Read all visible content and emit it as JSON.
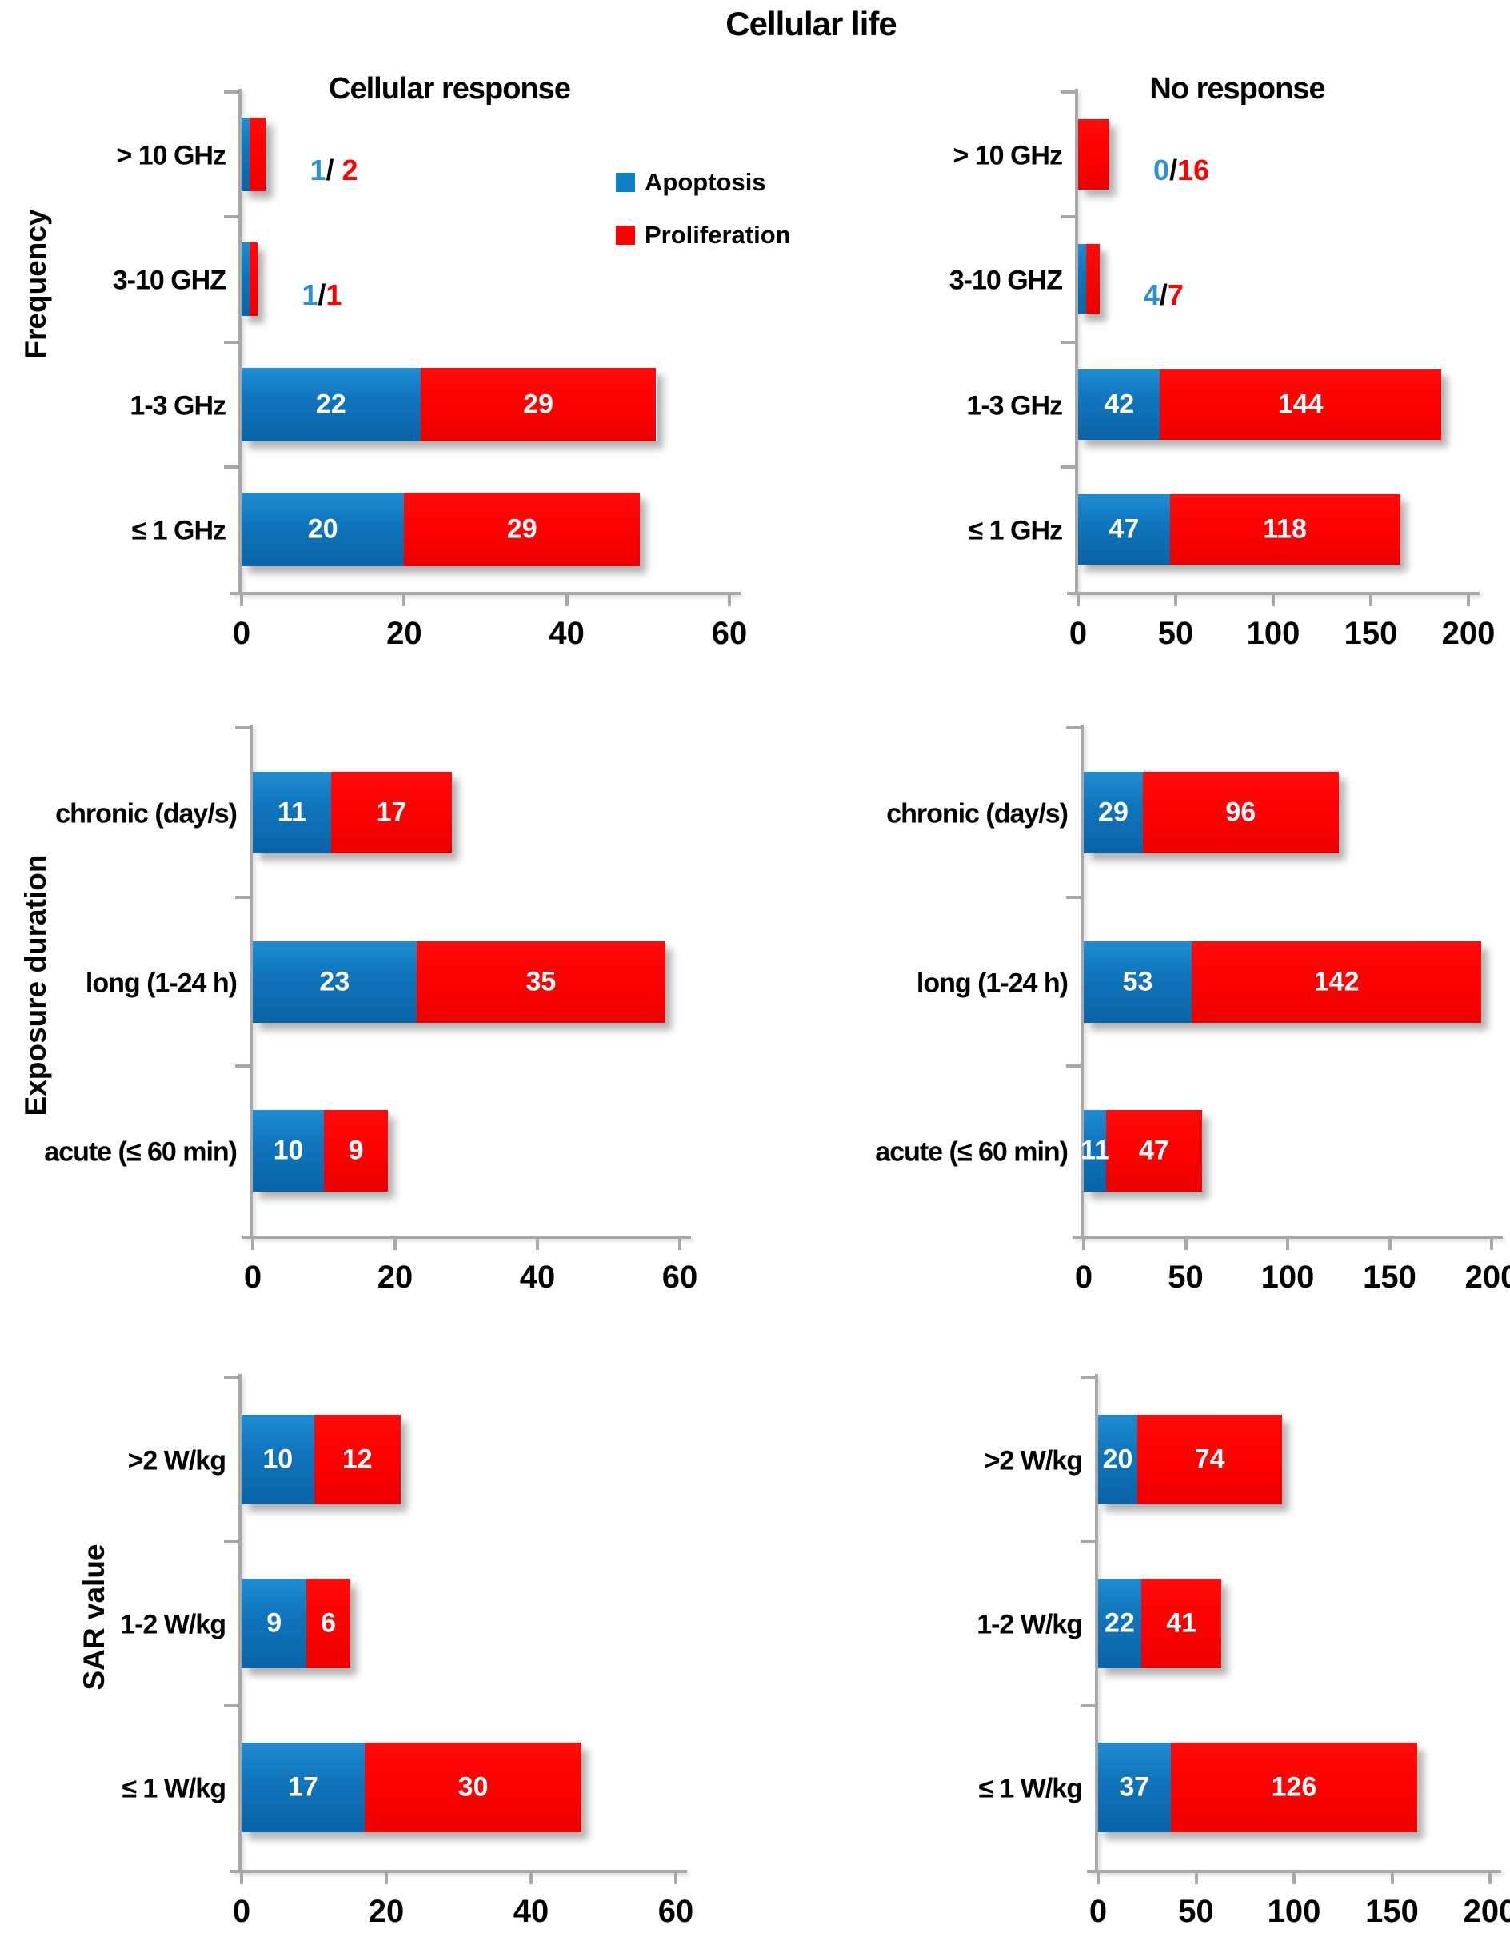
{
  "title": "Cellular life",
  "colors": {
    "apoptosis": "#0e7ec6",
    "apoptosis_dark": "#0a63a6",
    "proliferation": "#ff0000",
    "axis": "#a8a8a8",
    "label_blue": "#2e8fd6",
    "label_red": "#ff0000",
    "bar_value_text": "#ffffff"
  },
  "legend": {
    "items": [
      {
        "label": "Apoptosis",
        "series": "apoptosis"
      },
      {
        "label": "Proliferation",
        "series": "proliferation"
      }
    ]
  },
  "chart_data": [
    {
      "type": "bar",
      "orientation": "horizontal",
      "stacked": true,
      "group": "Frequency",
      "panel_title": "Cellular response",
      "categories": [
        "> 10 GHz",
        "3-10 GHZ",
        "1-3 GHz",
        "≤ 1 GHz"
      ],
      "series": [
        {
          "name": "Apoptosis",
          "values": [
            1,
            1,
            22,
            20
          ]
        },
        {
          "name": "Proliferation",
          "values": [
            2,
            1,
            29,
            29
          ]
        }
      ],
      "xlim": [
        0,
        60
      ],
      "x_ticks": [
        0,
        20,
        40,
        60
      ],
      "grid": false,
      "side_labels": [
        {
          "row": 0,
          "blue": "1",
          "sep": "/ ",
          "red": "2"
        },
        {
          "row": 1,
          "blue": "1",
          "sep": "/",
          "red": "1"
        }
      ]
    },
    {
      "type": "bar",
      "orientation": "horizontal",
      "stacked": true,
      "group": "Frequency",
      "panel_title": "No response",
      "categories": [
        "> 10 GHz",
        "3-10 GHZ",
        "1-3 GHz",
        "≤ 1 GHz"
      ],
      "series": [
        {
          "name": "Apoptosis",
          "values": [
            0,
            4,
            42,
            47
          ]
        },
        {
          "name": "Proliferation",
          "values": [
            16,
            7,
            144,
            118
          ]
        }
      ],
      "xlim": [
        0,
        200
      ],
      "x_ticks": [
        0,
        50,
        100,
        150,
        200
      ],
      "grid": false,
      "side_labels": [
        {
          "row": 0,
          "blue": "0",
          "sep": "/",
          "red": "16"
        },
        {
          "row": 1,
          "blue": "4",
          "sep": "/",
          "red": "7"
        }
      ]
    },
    {
      "type": "bar",
      "orientation": "horizontal",
      "stacked": true,
      "group": "Exposure duration",
      "panel_title": "",
      "categories": [
        "chronic (day/s)",
        "long (1-24 h)",
        "acute (≤ 60 min)"
      ],
      "series": [
        {
          "name": "Apoptosis",
          "values": [
            11,
            23,
            10
          ]
        },
        {
          "name": "Proliferation",
          "values": [
            17,
            35,
            9
          ]
        }
      ],
      "xlim": [
        0,
        60
      ],
      "x_ticks": [
        0,
        20,
        40,
        60
      ],
      "grid": false,
      "side_labels": []
    },
    {
      "type": "bar",
      "orientation": "horizontal",
      "stacked": true,
      "group": "Exposure duration",
      "panel_title": "",
      "categories": [
        "chronic (day/s)",
        "long (1-24 h)",
        "acute (≤ 60 min)"
      ],
      "series": [
        {
          "name": "Apoptosis",
          "values": [
            29,
            53,
            11
          ]
        },
        {
          "name": "Proliferation",
          "values": [
            96,
            142,
            47
          ]
        }
      ],
      "xlim": [
        0,
        200
      ],
      "x_ticks": [
        0,
        50,
        100,
        150,
        200
      ],
      "grid": false,
      "side_labels": []
    },
    {
      "type": "bar",
      "orientation": "horizontal",
      "stacked": true,
      "group": "SAR value",
      "panel_title": "",
      "categories": [
        ">2 W/kg",
        "1-2 W/kg",
        "≤ 1 W/kg"
      ],
      "series": [
        {
          "name": "Apoptosis",
          "values": [
            10,
            9,
            17
          ]
        },
        {
          "name": "Proliferation",
          "values": [
            12,
            6,
            30
          ]
        }
      ],
      "xlim": [
        0,
        60
      ],
      "x_ticks": [
        0,
        20,
        40,
        60
      ],
      "grid": false,
      "side_labels": []
    },
    {
      "type": "bar",
      "orientation": "horizontal",
      "stacked": true,
      "group": "SAR value",
      "panel_title": "",
      "categories": [
        ">2 W/kg",
        "1-2 W/kg",
        "≤ 1 W/kg"
      ],
      "series": [
        {
          "name": "Apoptosis",
          "values": [
            20,
            22,
            37
          ]
        },
        {
          "name": "Proliferation",
          "values": [
            74,
            41,
            126
          ]
        }
      ],
      "xlim": [
        0,
        200
      ],
      "x_ticks": [
        0,
        50,
        100,
        150,
        200
      ],
      "grid": false,
      "side_labels": []
    }
  ]
}
